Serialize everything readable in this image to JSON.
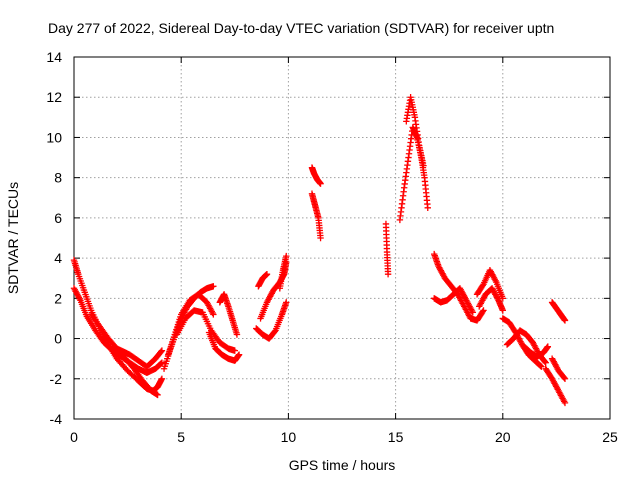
{
  "chart_data": {
    "type": "scatter",
    "title": "Day 277 of 2022, Sidereal Day-to-day VTEC variation (SDTVAR) for receiver uptn",
    "xlabel": "GPS time / hours",
    "ylabel": "SDTVAR / TECUs",
    "xlim": [
      0,
      25
    ],
    "ylim": [
      -4,
      14
    ],
    "xticks": [
      0,
      5,
      10,
      15,
      20,
      25
    ],
    "yticks": [
      -4,
      -2,
      0,
      2,
      4,
      6,
      8,
      10,
      12,
      14
    ],
    "grid": true,
    "marker": "plus",
    "color": "#ff0000",
    "series": [
      {
        "name": "trace-a",
        "x": [
          0,
          0.2,
          0.5,
          0.8,
          1.2,
          1.6,
          2.0,
          2.5,
          3.0,
          3.4,
          3.7,
          3.9,
          4.1
        ],
        "y": [
          3.9,
          3.2,
          2.3,
          1.4,
          0.5,
          -0.3,
          -1.0,
          -1.6,
          -2.1,
          -2.5,
          -2.6,
          -2.4,
          -2.0
        ]
      },
      {
        "name": "trace-b",
        "x": [
          0,
          0.3,
          0.6,
          1.0,
          1.4,
          1.8,
          2.2,
          2.6,
          3.0,
          3.4,
          3.8,
          4.1
        ],
        "y": [
          2.5,
          1.9,
          1.1,
          0.4,
          -0.2,
          -0.6,
          -0.9,
          -1.2,
          -1.5,
          -1.7,
          -1.5,
          -1.2
        ]
      },
      {
        "name": "trace-c",
        "x": [
          0.8,
          1.2,
          1.6,
          2.0,
          2.4,
          2.8,
          3.2,
          3.6,
          3.9
        ],
        "y": [
          1.2,
          0.6,
          0.0,
          -0.5,
          -1.0,
          -1.5,
          -2.1,
          -2.6,
          -2.8
        ]
      },
      {
        "name": "trace-d",
        "x": [
          1.8,
          2.2,
          2.6,
          3.0,
          3.4,
          3.8,
          4.1
        ],
        "y": [
          -0.4,
          -0.6,
          -0.8,
          -1.1,
          -1.4,
          -1.0,
          -0.6
        ]
      },
      {
        "name": "trace-e",
        "x": [
          4.2,
          4.5,
          4.8,
          5.0,
          5.3,
          5.6,
          5.9,
          6.2,
          6.5
        ],
        "y": [
          -1.5,
          -0.5,
          0.4,
          1.0,
          1.6,
          2.0,
          2.3,
          2.5,
          2.6
        ]
      },
      {
        "name": "trace-f",
        "x": [
          4.4,
          4.7,
          5.0,
          5.4,
          5.8,
          6.2,
          6.5
        ],
        "y": [
          -0.8,
          0.2,
          1.2,
          1.9,
          2.2,
          1.8,
          1.2
        ]
      },
      {
        "name": "trace-g",
        "x": [
          4.8,
          5.2,
          5.6,
          6.0,
          6.4,
          6.8,
          7.2,
          7.5
        ],
        "y": [
          0.2,
          1.0,
          1.4,
          1.3,
          0.4,
          -0.2,
          -0.5,
          -0.6
        ]
      },
      {
        "name": "trace-h",
        "x": [
          6.3,
          6.6,
          6.9,
          7.2,
          7.5,
          7.7
        ],
        "y": [
          0.3,
          -0.5,
          -0.8,
          -1.0,
          -1.1,
          -0.8
        ]
      },
      {
        "name": "trace-i",
        "x": [
          6.8,
          7.0,
          7.2,
          7.4,
          7.6
        ],
        "y": [
          1.8,
          2.2,
          1.6,
          0.9,
          0.2
        ]
      },
      {
        "name": "trace-j",
        "x": [
          8.5,
          8.8,
          9.1,
          9.4,
          9.7,
          9.9
        ],
        "y": [
          0.5,
          0.2,
          0.0,
          0.4,
          1.2,
          1.8
        ]
      },
      {
        "name": "trace-k",
        "x": [
          8.6,
          8.8,
          9.0
        ],
        "y": [
          2.6,
          3.0,
          3.2
        ]
      },
      {
        "name": "trace-l",
        "x": [
          8.7,
          9.0,
          9.3,
          9.6,
          9.8,
          9.9
        ],
        "y": [
          1.0,
          1.8,
          2.4,
          2.8,
          3.2,
          3.8
        ]
      },
      {
        "name": "trace-m",
        "x": [
          9.6,
          9.75,
          9.9
        ],
        "y": [
          2.5,
          3.4,
          4.1
        ]
      },
      {
        "name": "trace-n",
        "x": [
          11.1,
          11.2,
          11.35,
          11.5
        ],
        "y": [
          8.5,
          8.2,
          7.9,
          7.7
        ]
      },
      {
        "name": "trace-o",
        "x": [
          11.1,
          11.25,
          11.4,
          11.5
        ],
        "y": [
          7.2,
          6.6,
          6.0,
          5.0
        ]
      },
      {
        "name": "trace-p",
        "x": [
          14.55,
          14.6,
          14.65
        ],
        "y": [
          5.7,
          4.3,
          3.2
        ]
      },
      {
        "name": "trace-q",
        "x": [
          15.2,
          15.4,
          15.6,
          15.8,
          16.0,
          16.2,
          16.35,
          16.5
        ],
        "y": [
          5.9,
          7.5,
          9.0,
          10.5,
          10.0,
          9.0,
          8.0,
          6.5
        ]
      },
      {
        "name": "trace-r",
        "x": [
          15.5,
          15.7,
          15.9,
          16.1,
          16.3
        ],
        "y": [
          10.8,
          12.0,
          11.0,
          9.6,
          8.6
        ]
      },
      {
        "name": "trace-s",
        "x": [
          16.8,
          17.0,
          17.3,
          17.6,
          17.9,
          18.2,
          18.5,
          18.8,
          19.1
        ],
        "y": [
          4.2,
          3.6,
          3.0,
          2.6,
          2.2,
          1.6,
          1.0,
          0.9,
          1.4
        ]
      },
      {
        "name": "trace-t",
        "x": [
          16.8,
          17.1,
          17.4,
          17.7,
          18.0,
          18.3,
          18.6
        ],
        "y": [
          2.0,
          1.8,
          1.9,
          2.2,
          2.5,
          1.9,
          1.3
        ]
      },
      {
        "name": "trace-u",
        "x": [
          18.8,
          19.1,
          19.4,
          19.7,
          20.0
        ],
        "y": [
          2.2,
          2.7,
          3.4,
          2.8,
          2.0
        ]
      },
      {
        "name": "trace-v",
        "x": [
          18.9,
          19.2,
          19.5,
          19.8,
          20.0
        ],
        "y": [
          1.6,
          2.2,
          2.5,
          1.9,
          1.4
        ]
      },
      {
        "name": "trace-w",
        "x": [
          20.0,
          20.3,
          20.6,
          20.9,
          21.2,
          21.5,
          21.8
        ],
        "y": [
          1.0,
          0.8,
          0.3,
          -0.3,
          -0.8,
          -1.1,
          -1.4
        ]
      },
      {
        "name": "trace-x",
        "x": [
          20.2,
          20.5,
          20.8,
          21.1,
          21.4,
          21.7,
          22.0
        ],
        "y": [
          -0.3,
          0.0,
          0.4,
          0.2,
          -0.2,
          -0.8,
          -1.2
        ]
      },
      {
        "name": "trace-y",
        "x": [
          21.0,
          21.3,
          21.6,
          21.9,
          22.1
        ],
        "y": [
          -0.4,
          -0.7,
          -0.9,
          -0.7,
          -0.4
        ]
      },
      {
        "name": "trace-z",
        "x": [
          22.0,
          22.3,
          22.6,
          22.9
        ],
        "y": [
          -1.5,
          -2.0,
          -2.6,
          -3.2
        ]
      },
      {
        "name": "trace-aa",
        "x": [
          22.3,
          22.6,
          22.9
        ],
        "y": [
          -1.0,
          -1.6,
          -2.0
        ]
      },
      {
        "name": "trace-ab",
        "x": [
          22.3,
          22.5,
          22.7,
          22.9
        ],
        "y": [
          1.8,
          1.5,
          1.2,
          0.9
        ]
      }
    ]
  }
}
